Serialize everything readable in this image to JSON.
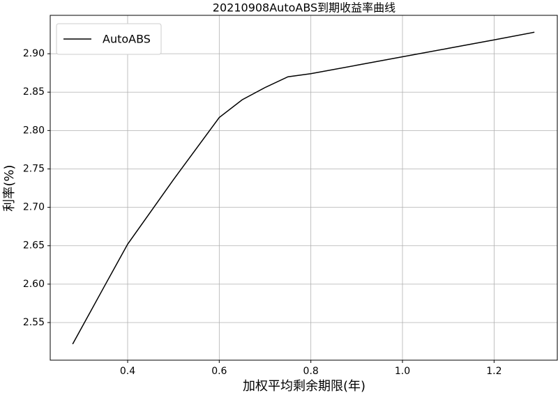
{
  "chart_data": {
    "type": "line",
    "title": "20210908AutoABS到期收益率曲线",
    "xlabel": "加权平均剩余期限(年)",
    "ylabel": "利率(%)",
    "x": [
      0.28,
      0.35,
      0.4,
      0.5,
      0.6,
      0.65,
      0.7,
      0.75,
      0.8,
      0.9,
      1.0,
      1.1,
      1.2,
      1.288
    ],
    "series": [
      {
        "name": "AutoABS",
        "color": "#000000",
        "values": [
          2.522,
          2.598,
          2.652,
          2.736,
          2.817,
          2.84,
          2.856,
          2.87,
          2.874,
          2.885,
          2.896,
          2.907,
          2.918,
          2.928
        ]
      }
    ],
    "xlim": [
      0.231,
      1.338
    ],
    "ylim": [
      2.501,
      2.95
    ],
    "xticks": [
      0.4,
      0.6,
      0.8,
      {
        "value": 1.0,
        "label": "1.0"
      },
      1.2
    ],
    "yticks": [
      2.55,
      {
        "value": 2.6,
        "label": "2.60"
      },
      2.65,
      {
        "value": 2.7,
        "label": "2.70"
      },
      2.75,
      {
        "value": 2.8,
        "label": "2.80"
      },
      2.85,
      {
        "value": 2.9,
        "label": "2.90"
      }
    ],
    "grid": true,
    "legend": "upper left"
  }
}
